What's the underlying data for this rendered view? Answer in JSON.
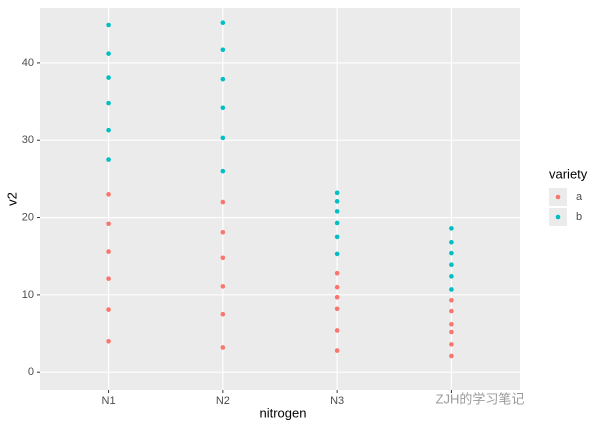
{
  "chart_data": {
    "type": "scatter",
    "x_label": "nitrogen",
    "y_label": "v2",
    "categories": [
      "N1",
      "N2",
      "N3",
      null
    ],
    "series": [
      {
        "name": "a",
        "color": "#F8766D",
        "values": [
          [
            23.0,
            19.2,
            15.6,
            12.1,
            8.1,
            4.0
          ],
          [
            22.0,
            18.1,
            14.8,
            11.1,
            7.5,
            3.2
          ],
          [
            12.8,
            11.0,
            9.7,
            8.2,
            5.4,
            2.8
          ],
          [
            9.3,
            7.9,
            6.2,
            5.2,
            3.6,
            2.1
          ]
        ]
      },
      {
        "name": "b",
        "color": "#00BFC4",
        "values": [
          [
            44.9,
            41.2,
            38.1,
            34.8,
            31.3,
            27.5
          ],
          [
            45.2,
            41.7,
            37.9,
            34.2,
            30.3,
            26.0
          ],
          [
            23.2,
            22.1,
            20.8,
            19.3,
            17.5,
            15.3
          ],
          [
            18.6,
            16.8,
            15.4,
            13.9,
            12.4,
            10.7
          ]
        ]
      }
    ],
    "legend_title": "variety",
    "ylim": [
      -2.3,
      47.1
    ],
    "yticks": [
      0,
      10,
      20,
      30,
      40
    ],
    "grid": true,
    "watermark": "ZJH的学习笔记"
  }
}
